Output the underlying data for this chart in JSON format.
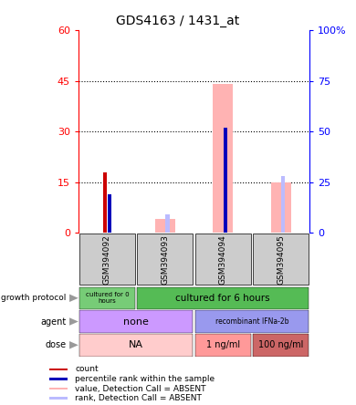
{
  "title": "GDS4163 / 1431_at",
  "samples": [
    "GSM394092",
    "GSM394093",
    "GSM394094",
    "GSM394095"
  ],
  "count_values": [
    18,
    0,
    0,
    0
  ],
  "percentile_rank_values": [
    19,
    0,
    52,
    0
  ],
  "value_absent": [
    0,
    4,
    44,
    15
  ],
  "rank_absent": [
    0,
    9,
    52,
    28
  ],
  "ylim_left": [
    0,
    60
  ],
  "ylim_right": [
    0,
    100
  ],
  "yticks_left": [
    0,
    15,
    30,
    45,
    60
  ],
  "yticks_right": [
    0,
    25,
    50,
    75,
    100
  ],
  "color_count": "#cc0000",
  "color_percentile": "#0000bb",
  "color_value_absent": "#ffb3b3",
  "color_rank_absent": "#bbbbff",
  "color_growth_0": "#77cc77",
  "color_growth_6": "#55bb55",
  "color_agent_none": "#cc99ff",
  "color_agent_rec": "#9999ee",
  "color_dose_na": "#ffcccc",
  "color_dose_1": "#ff9999",
  "color_dose_100": "#cc6666",
  "legend_items": [
    {
      "label": "count",
      "color": "#cc0000"
    },
    {
      "label": "percentile rank within the sample",
      "color": "#0000bb"
    },
    {
      "label": "value, Detection Call = ABSENT",
      "color": "#ffb3b3"
    },
    {
      "label": "rank, Detection Call = ABSENT",
      "color": "#bbbbff"
    }
  ]
}
